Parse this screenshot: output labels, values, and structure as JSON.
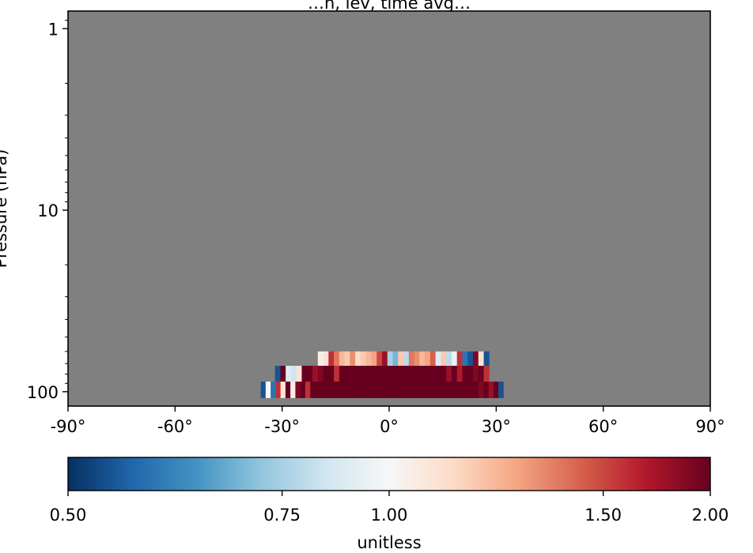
{
  "chart_data": {
    "type": "heatmap",
    "title": "…n, lev, time avg…",
    "xlabel": "",
    "ylabel": "Pressure (hPa)",
    "xlim": [
      -90,
      90
    ],
    "ylim": [
      120,
      0.8
    ],
    "y_scale": "log",
    "x_ticks": [
      {
        "value": -90,
        "label": "-90°"
      },
      {
        "value": -60,
        "label": "-60°"
      },
      {
        "value": -30,
        "label": "-30°"
      },
      {
        "value": 0,
        "label": "0°"
      },
      {
        "value": 30,
        "label": "30°"
      },
      {
        "value": 60,
        "label": "60°"
      },
      {
        "value": 90,
        "label": "90°"
      }
    ],
    "y_ticks": [
      {
        "value": 1,
        "label": "1"
      },
      {
        "value": 10,
        "label": "10"
      },
      {
        "value": 100,
        "label": "100"
      }
    ],
    "missing_color": "#808080",
    "colormap": "RdBu_r",
    "colorbar": {
      "label": "unitless",
      "ticks": [
        {
          "value": 0.5,
          "label": "0.50"
        },
        {
          "value": 0.75,
          "label": "0.75"
        },
        {
          "value": 1.0,
          "label": "1.00"
        },
        {
          "value": 1.5,
          "label": "1.50"
        },
        {
          "value": 2.0,
          "label": "2.00"
        }
      ],
      "tick_positions": [
        0.0,
        0.3333,
        0.5,
        0.8333,
        1.0
      ],
      "colors": [
        "#053061",
        "#2166ac",
        "#4393c3",
        "#92c5de",
        "#d1e5f0",
        "#f7f7f7",
        "#fddbc7",
        "#f4a582",
        "#d6604d",
        "#b2182b",
        "#67001f"
      ]
    },
    "rows": [
      {
        "p_top": 60,
        "p_bottom": 72,
        "x_start": -20,
        "x_end": 28,
        "values": [
          1.05,
          1.1,
          1.6,
          1.4,
          1.25,
          1.2,
          1.35,
          1.15,
          1.2,
          1.25,
          1.3,
          1.5,
          1.8,
          0.75,
          0.7,
          1.2,
          0.8,
          1.4,
          1.35,
          1.25,
          1.3,
          1.45,
          0.9,
          1.2,
          0.8,
          0.95,
          1.6,
          0.6,
          0.55,
          1.9,
          1.1,
          0.55
        ]
      },
      {
        "p_top": 72,
        "p_bottom": 88,
        "x_start": -32,
        "x_end": 28,
        "values": [
          0.55,
          2.0,
          0.9,
          0.85,
          1.1,
          2.0,
          2.0,
          1.8,
          1.9,
          2.0,
          2.0,
          1.6,
          2.0,
          2.0,
          2.0,
          2.0,
          2.0,
          2.0,
          2.0,
          2.0,
          2.0,
          2.0,
          2.0,
          2.0,
          2.0,
          2.0,
          2.0,
          2.0,
          2.0,
          2.0,
          2.0,
          2.0,
          1.8,
          2.0,
          1.7,
          2.0,
          2.0,
          1.9,
          2.0,
          1.6
        ]
      },
      {
        "p_top": 88,
        "p_bottom": 108,
        "x_start": -36,
        "x_end": 32,
        "values": [
          0.55,
          1.0,
          0.6,
          1.6,
          1.1,
          2.0,
          1.05,
          1.9,
          2.0,
          1.6,
          2.0,
          2.0,
          2.0,
          2.0,
          2.0,
          2.0,
          2.0,
          2.0,
          2.0,
          2.0,
          2.0,
          2.0,
          2.0,
          2.0,
          2.0,
          2.0,
          2.0,
          2.0,
          2.0,
          2.0,
          2.0,
          2.0,
          2.0,
          2.0,
          2.0,
          2.0,
          2.0,
          2.0,
          2.0,
          2.0,
          2.0,
          2.0,
          2.0,
          2.0,
          1.9,
          2.0,
          1.8,
          2.0,
          0.55
        ]
      }
    ]
  }
}
